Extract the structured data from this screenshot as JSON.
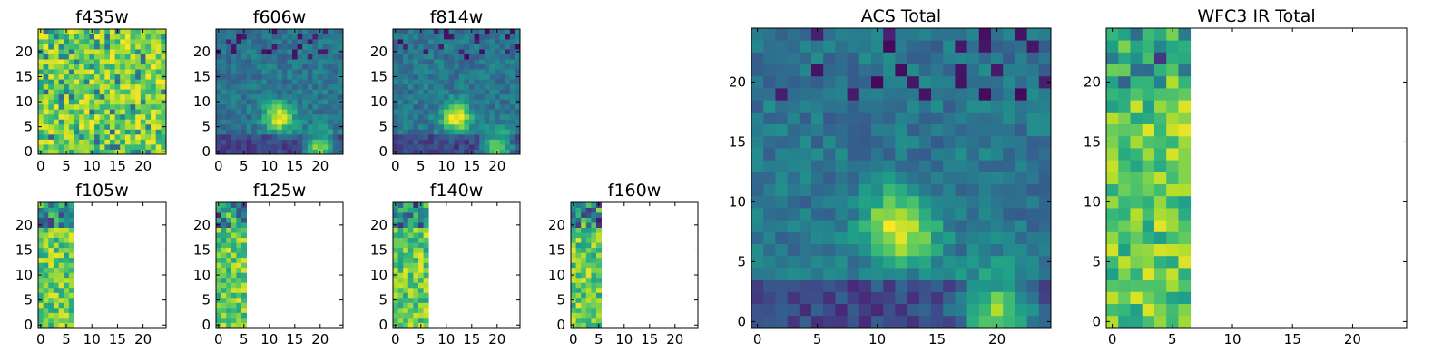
{
  "chart_data": [
    {
      "type": "heatmap",
      "title": "f435w",
      "xlim": [
        0,
        24
      ],
      "ylim": [
        0,
        24
      ],
      "xticks": [
        "0",
        "5",
        "10",
        "15",
        "20"
      ],
      "yticks": [
        "0",
        "5",
        "10",
        "15",
        "20"
      ],
      "data_columns": 25,
      "pattern": "noise",
      "colormap": "viridis"
    },
    {
      "type": "heatmap",
      "title": "f606w",
      "xlim": [
        0,
        24
      ],
      "ylim": [
        0,
        24
      ],
      "xticks": [
        "0",
        "5",
        "10",
        "15",
        "20"
      ],
      "yticks": [
        "0",
        "5",
        "10",
        "15",
        "20"
      ],
      "data_columns": 25,
      "pattern": "sources",
      "sources": [
        {
          "x": 12,
          "y": 7
        },
        {
          "x": 20,
          "y": 1
        }
      ],
      "colormap": "viridis"
    },
    {
      "type": "heatmap",
      "title": "f814w",
      "xlim": [
        0,
        24
      ],
      "ylim": [
        0,
        24
      ],
      "xticks": [
        "0",
        "5",
        "10",
        "15",
        "20"
      ],
      "yticks": [
        "0",
        "5",
        "10",
        "15",
        "20"
      ],
      "data_columns": 25,
      "pattern": "sources",
      "sources": [
        {
          "x": 12,
          "y": 7
        },
        {
          "x": 20,
          "y": 1
        }
      ],
      "colormap": "viridis"
    },
    {
      "type": "heatmap",
      "title": "f105w",
      "xlim": [
        0,
        24
      ],
      "ylim": [
        0,
        24
      ],
      "xticks": [
        "0",
        "5",
        "10",
        "15",
        "20"
      ],
      "yticks": [
        "0",
        "5",
        "10",
        "15",
        "20"
      ],
      "data_columns": 7,
      "pattern": "strip",
      "colormap": "viridis"
    },
    {
      "type": "heatmap",
      "title": "f125w",
      "xlim": [
        0,
        24
      ],
      "ylim": [
        0,
        24
      ],
      "xticks": [
        "0",
        "5",
        "10",
        "15",
        "20"
      ],
      "yticks": [
        "0",
        "5",
        "10",
        "15",
        "20"
      ],
      "data_columns": 6,
      "pattern": "strip",
      "colormap": "viridis"
    },
    {
      "type": "heatmap",
      "title": "f140w",
      "xlim": [
        0,
        24
      ],
      "ylim": [
        0,
        24
      ],
      "xticks": [
        "0",
        "5",
        "10",
        "15",
        "20"
      ],
      "yticks": [
        "0",
        "5",
        "10",
        "15",
        "20"
      ],
      "data_columns": 7,
      "pattern": "strip",
      "colormap": "viridis"
    },
    {
      "type": "heatmap",
      "title": "f160w",
      "xlim": [
        0,
        24
      ],
      "ylim": [
        0,
        24
      ],
      "xticks": [
        "0",
        "5",
        "10",
        "15",
        "20"
      ],
      "yticks": [
        "0",
        "5",
        "10",
        "15",
        "20"
      ],
      "data_columns": 6,
      "pattern": "strip",
      "colormap": "viridis"
    },
    {
      "type": "heatmap",
      "title": "ACS Total",
      "xlim": [
        0,
        24
      ],
      "ylim": [
        0,
        24
      ],
      "xticks": [
        "0",
        "5",
        "10",
        "15",
        "20"
      ],
      "yticks": [
        "0",
        "5",
        "10",
        "15",
        "20"
      ],
      "data_columns": 25,
      "pattern": "sources",
      "sources": [
        {
          "x": 12,
          "y": 8
        },
        {
          "x": 20,
          "y": 1
        }
      ],
      "colormap": "viridis"
    },
    {
      "type": "heatmap",
      "title": "WFC3 IR Total",
      "xlim": [
        0,
        24
      ],
      "ylim": [
        0,
        24
      ],
      "xticks": [
        "0",
        "5",
        "10",
        "15",
        "20"
      ],
      "yticks": [
        "0",
        "5",
        "10",
        "15",
        "20"
      ],
      "data_columns": 7,
      "pattern": "strip",
      "colormap": "viridis"
    }
  ]
}
